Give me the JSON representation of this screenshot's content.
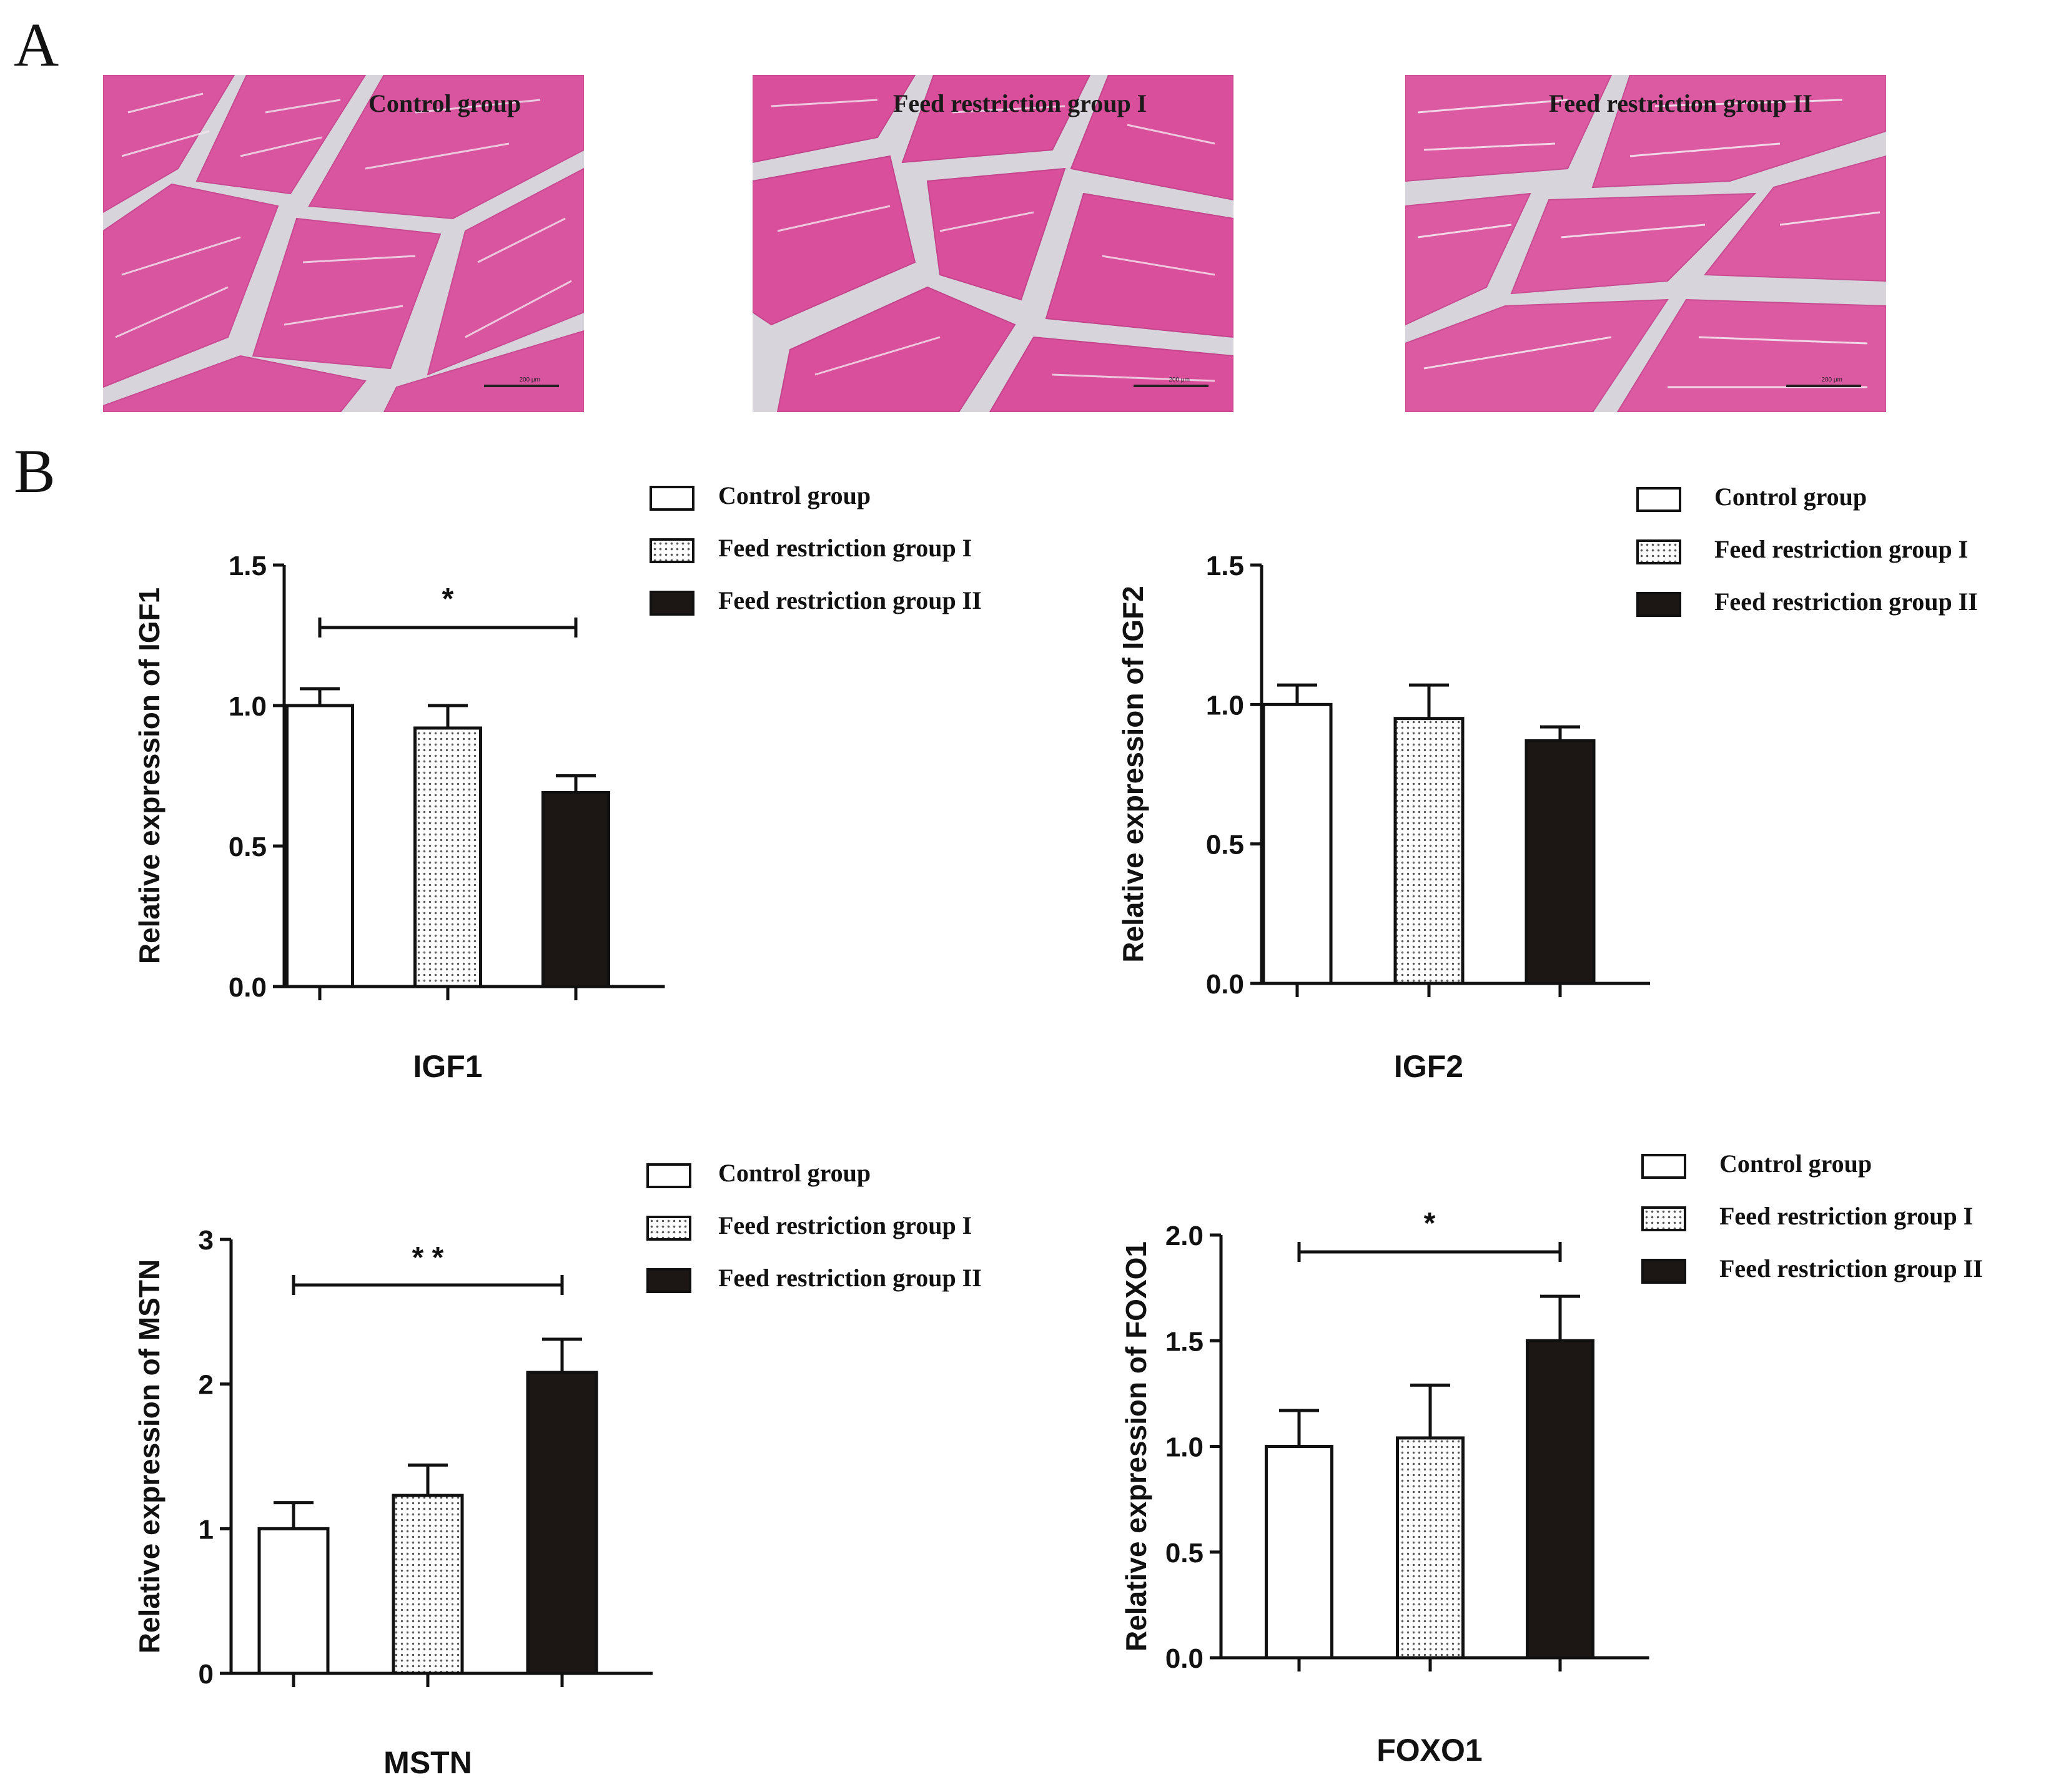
{
  "panel_a": {
    "letter": "A",
    "images": [
      {
        "label": "Control group",
        "scale_text": "200 μm"
      },
      {
        "label": "Feed restriction group I",
        "scale_text": "200 μm"
      },
      {
        "label": "Feed restriction group II",
        "scale_text": "200 μm"
      }
    ]
  },
  "panel_b": {
    "letter": "B",
    "legend": [
      "Control group",
      "Feed restriction group I",
      "Feed restriction group II"
    ]
  },
  "chart_data": [
    {
      "type": "bar",
      "title": "",
      "xlabel": "IGF1",
      "ylabel": "Relative expression of IGF1",
      "categories": [
        "Control group",
        "Feed restriction group I",
        "Feed restriction group II"
      ],
      "values": [
        1.0,
        0.92,
        0.69
      ],
      "errors": [
        0.06,
        0.08,
        0.06
      ],
      "ylim": [
        0,
        1.5
      ],
      "yticks": [
        "0.0",
        "0.5",
        "1.0",
        "1.5"
      ],
      "significance": {
        "from": 0,
        "to": 2,
        "label": "*"
      }
    },
    {
      "type": "bar",
      "title": "",
      "xlabel": "IGF2",
      "ylabel": "Relative expression of IGF2",
      "categories": [
        "Control group",
        "Feed restriction group I",
        "Feed restriction group II"
      ],
      "values": [
        1.0,
        0.95,
        0.87
      ],
      "errors": [
        0.07,
        0.12,
        0.05
      ],
      "ylim": [
        0,
        1.5
      ],
      "yticks": [
        "0.0",
        "0.5",
        "1.0",
        "1.5"
      ],
      "significance": null
    },
    {
      "type": "bar",
      "title": "",
      "xlabel": "MSTN",
      "ylabel": "Relative expression of MSTN",
      "categories": [
        "Control group",
        "Feed restriction group I",
        "Feed restriction group II"
      ],
      "values": [
        1.0,
        1.23,
        2.08
      ],
      "errors": [
        0.18,
        0.21,
        0.23
      ],
      "ylim": [
        0,
        3
      ],
      "yticks": [
        "0",
        "1",
        "2",
        "3"
      ],
      "significance": {
        "from": 0,
        "to": 2,
        "label": "* *"
      }
    },
    {
      "type": "bar",
      "title": "",
      "xlabel": "FOXO1",
      "ylabel": "Relative expression of FOXO1",
      "categories": [
        "Control group",
        "Feed restriction group I",
        "Feed restriction group II"
      ],
      "values": [
        1.0,
        1.04,
        1.5
      ],
      "errors": [
        0.17,
        0.25,
        0.21
      ],
      "ylim": [
        0,
        2.0
      ],
      "yticks": [
        "0.0",
        "0.5",
        "1.0",
        "1.5",
        "2.0"
      ],
      "significance": {
        "from": 0,
        "to": 2,
        "label": "*"
      }
    }
  ]
}
